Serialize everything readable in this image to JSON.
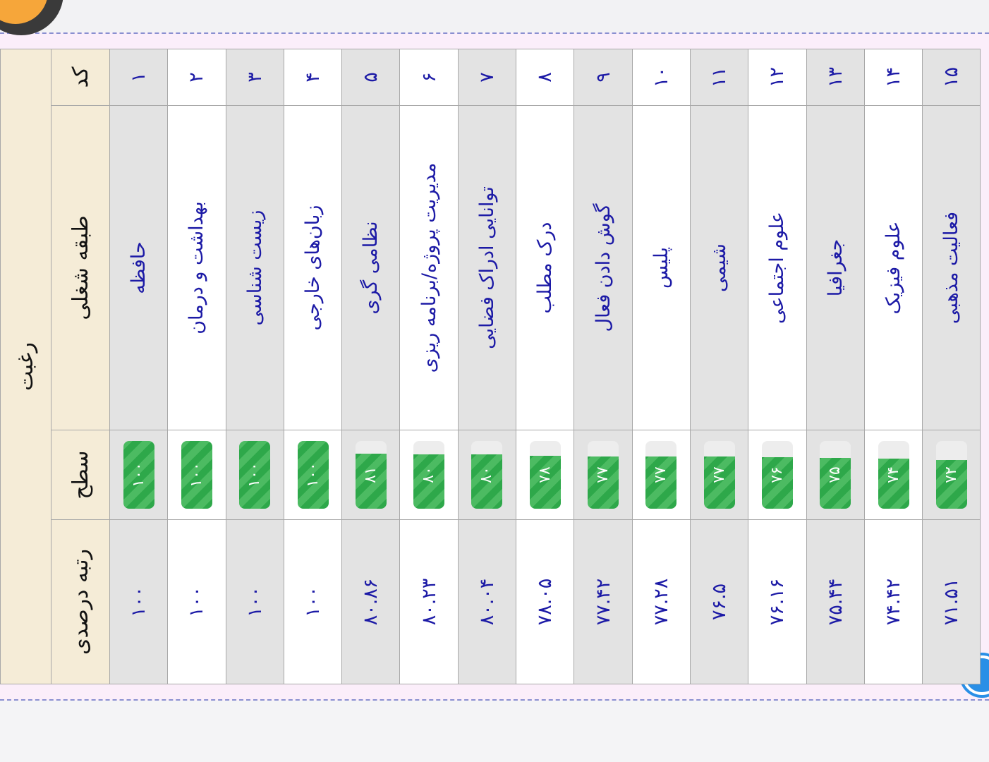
{
  "table": {
    "title": "رغبت",
    "headers": [
      "کد",
      "طبقه شغلی",
      "سطح",
      "رتبه درصدی"
    ],
    "rows": [
      {
        "code": "۱",
        "name": "حافظه",
        "level": {
          "value": 100,
          "label": "۱۰۰"
        },
        "percentile": "۱۰۰"
      },
      {
        "code": "۲",
        "name": "بهداشت و درمان",
        "level": {
          "value": 100,
          "label": "۱۰۰"
        },
        "percentile": "۱۰۰"
      },
      {
        "code": "۳",
        "name": "زیست شناسی",
        "level": {
          "value": 100,
          "label": "۱۰۰"
        },
        "percentile": "۱۰۰"
      },
      {
        "code": "۴",
        "name": "زبان‌های خارجی",
        "level": {
          "value": 100,
          "label": "۱۰۰"
        },
        "percentile": "۱۰۰"
      },
      {
        "code": "۵",
        "name": "نظامی گری",
        "level": {
          "value": 81,
          "label": "۸۱"
        },
        "percentile": "۸۰.۸۶"
      },
      {
        "code": "۶",
        "name": "مدیریت پروژه/برنامه ریزی",
        "level": {
          "value": 80,
          "label": "۸۰"
        },
        "percentile": "۸۰.۲۳"
      },
      {
        "code": "۷",
        "name": "توانایی ادراک فضایی",
        "level": {
          "value": 80,
          "label": "۸۰"
        },
        "percentile": "۸۰.۰۴"
      },
      {
        "code": "۸",
        "name": "درک مطلب",
        "level": {
          "value": 78,
          "label": "۷۸"
        },
        "percentile": "۷۸.۰۵"
      },
      {
        "code": "۹",
        "name": "گوش دادن فعال",
        "level": {
          "value": 77,
          "label": "۷۷"
        },
        "percentile": "۷۷.۴۲"
      },
      {
        "code": "۱۰",
        "name": "پلیس",
        "level": {
          "value": 77,
          "label": "۷۷"
        },
        "percentile": "۷۷.۲۸"
      },
      {
        "code": "۱۱",
        "name": "شیمی",
        "level": {
          "value": 77,
          "label": "۷۷"
        },
        "percentile": "۷۶.۵"
      },
      {
        "code": "۱۲",
        "name": "علوم اجتماعی",
        "level": {
          "value": 76,
          "label": "۷۶"
        },
        "percentile": "۷۶.۱۶"
      },
      {
        "code": "۱۳",
        "name": "جغرافیا",
        "level": {
          "value": 75,
          "label": "۷۵"
        },
        "percentile": "۷۵.۴۴"
      },
      {
        "code": "۱۴",
        "name": "علوم فیزیک",
        "level": {
          "value": 74,
          "label": "۷۴"
        },
        "percentile": "۷۴.۴۲"
      },
      {
        "code": "۱۵",
        "name": "فعالیت مذهبی",
        "level": {
          "value": 72,
          "label": "۷۲"
        },
        "percentile": "۷۱.۵۱"
      }
    ]
  }
}
